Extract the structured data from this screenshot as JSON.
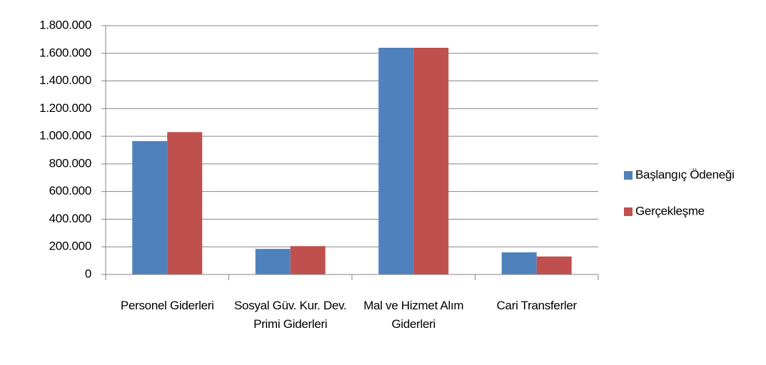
{
  "chart_data": {
    "type": "bar",
    "categories": [
      "Personel Giderleri",
      "Sosyal Güv. Kur. Dev. Primi Giderleri",
      "Mal ve Hizmet Alım Giderleri",
      "Cari Transferler"
    ],
    "series": [
      {
        "name": "Başlangıç Ödeneği",
        "color": "#4f81bd",
        "values": [
          965000,
          185000,
          1640000,
          160000
        ]
      },
      {
        "name": "Gerçekleşme",
        "color": "#c0504d",
        "values": [
          1030000,
          205000,
          1640000,
          130000
        ]
      }
    ],
    "ylim": [
      0,
      1800000
    ],
    "yticks": [
      0,
      {
        "value": 200000,
        "label": "200.000"
      },
      {
        "value": 400000,
        "label": "400.000"
      },
      {
        "value": 600000,
        "label": "600.000"
      },
      {
        "value": 800000,
        "label": "800.000"
      },
      {
        "value": 1000000,
        "label": "1.000.000"
      },
      {
        "value": 1200000,
        "label": "1.200.000"
      },
      {
        "value": 1400000,
        "label": "1.400.000"
      },
      {
        "value": 1600000,
        "label": "1.600.000"
      },
      {
        "value": 1800000,
        "label": "1.800.000"
      }
    ],
    "grid": true,
    "legend": "right"
  }
}
